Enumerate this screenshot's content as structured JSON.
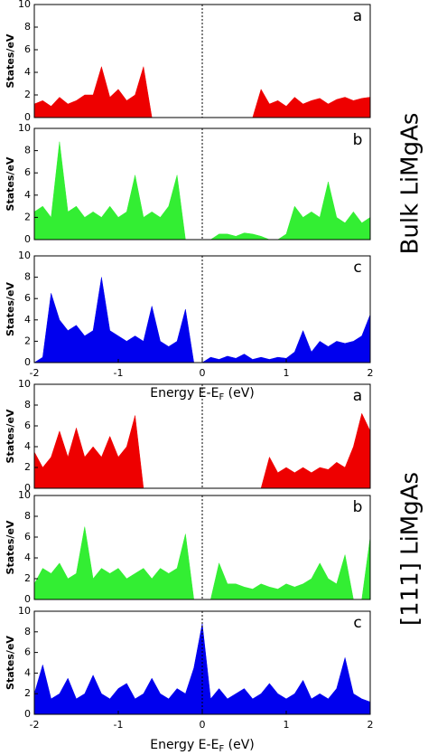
{
  "chart_data": [
    {
      "type": "area",
      "panel_label": "a",
      "ylabel": "States/eV",
      "color": "#ee0000",
      "zero_line": true,
      "xlim": [
        -2,
        2
      ],
      "ylim": [
        0,
        10
      ],
      "yticks": [
        0,
        2,
        4,
        6,
        8,
        10
      ],
      "x": [
        -2.0,
        -1.9,
        -1.8,
        -1.7,
        -1.6,
        -1.5,
        -1.4,
        -1.3,
        -1.2,
        -1.1,
        -1.0,
        -0.9,
        -0.8,
        -0.7,
        -0.6,
        -0.5,
        -0.4,
        -0.3,
        -0.2,
        -0.1,
        0,
        0.1,
        0.2,
        0.3,
        0.4,
        0.5,
        0.6,
        0.7,
        0.8,
        0.9,
        1.0,
        1.1,
        1.2,
        1.3,
        1.4,
        1.5,
        1.6,
        1.7,
        1.8,
        1.9,
        2.0
      ],
      "values": [
        1.2,
        1.5,
        1.0,
        1.8,
        1.2,
        1.5,
        2.0,
        2.0,
        4.5,
        1.8,
        2.5,
        1.5,
        2.0,
        4.5,
        0,
        0,
        0,
        0,
        0,
        0,
        0,
        0,
        0,
        0,
        0,
        0,
        0,
        2.5,
        1.2,
        1.5,
        1.0,
        1.8,
        1.2,
        1.5,
        1.7,
        1.2,
        1.6,
        1.8,
        1.5,
        1.7,
        1.8
      ]
    },
    {
      "type": "area",
      "panel_label": "b",
      "ylabel": "States/eV",
      "color": "#33ee33",
      "zero_line": true,
      "xlim": [
        -2,
        2
      ],
      "ylim": [
        0,
        10
      ],
      "yticks": [
        0,
        2,
        4,
        6,
        8,
        10
      ],
      "x": [
        -2.0,
        -1.9,
        -1.8,
        -1.7,
        -1.6,
        -1.5,
        -1.4,
        -1.3,
        -1.2,
        -1.1,
        -1.0,
        -0.9,
        -0.8,
        -0.7,
        -0.6,
        -0.5,
        -0.4,
        -0.3,
        -0.2,
        -0.1,
        0,
        0.1,
        0.2,
        0.3,
        0.4,
        0.5,
        0.6,
        0.7,
        0.8,
        0.9,
        1.0,
        1.1,
        1.2,
        1.3,
        1.4,
        1.5,
        1.6,
        1.7,
        1.8,
        1.9,
        2.0
      ],
      "values": [
        2.5,
        3,
        2,
        8.8,
        2.5,
        3,
        2,
        2.5,
        2,
        3,
        2,
        2.5,
        5.8,
        2,
        2.5,
        2,
        3,
        5.8,
        0,
        0,
        0,
        0,
        0.5,
        0.5,
        0.3,
        0.6,
        0.5,
        0.3,
        0,
        0,
        0.5,
        3,
        2,
        2.5,
        2,
        5.2,
        2,
        1.5,
        2.5,
        1.5,
        2
      ]
    },
    {
      "type": "area",
      "panel_label": "c",
      "ylabel": "States/eV",
      "color": "#0000ee",
      "zero_line": true,
      "xlim": [
        -2,
        2
      ],
      "ylim": [
        0,
        10
      ],
      "yticks": [
        0,
        2,
        4,
        6,
        8,
        10
      ],
      "xticks": [
        -2,
        -1,
        0,
        1,
        2
      ],
      "xlabel": [
        "Energy E-E",
        "F",
        " (eV)"
      ],
      "x": [
        -2.0,
        -1.9,
        -1.8,
        -1.7,
        -1.6,
        -1.5,
        -1.4,
        -1.3,
        -1.2,
        -1.1,
        -1.0,
        -0.9,
        -0.8,
        -0.7,
        -0.6,
        -0.5,
        -0.4,
        -0.3,
        -0.2,
        -0.1,
        0,
        0.1,
        0.2,
        0.3,
        0.4,
        0.5,
        0.6,
        0.7,
        0.8,
        0.9,
        1.0,
        1.1,
        1.2,
        1.3,
        1.4,
        1.5,
        1.6,
        1.7,
        1.8,
        1.9,
        2.0
      ],
      "values": [
        0,
        0.5,
        6.5,
        4,
        3,
        3.5,
        2.5,
        3,
        8,
        3,
        2.5,
        2,
        2.5,
        2,
        5.3,
        2,
        1.5,
        2,
        5,
        0,
        0,
        0.5,
        0.3,
        0.6,
        0.4,
        0.8,
        0.3,
        0.5,
        0.3,
        0.5,
        0.4,
        1,
        3,
        1,
        2,
        1.5,
        2,
        1.8,
        2,
        2.5,
        4.5
      ]
    },
    {
      "type": "area",
      "panel_label": "a",
      "ylabel": "States/eV",
      "color": "#ee0000",
      "zero_line": true,
      "xlim": [
        -2,
        2
      ],
      "ylim": [
        0,
        10
      ],
      "yticks": [
        0,
        2,
        4,
        6,
        8,
        10
      ],
      "x": [
        -2.0,
        -1.9,
        -1.8,
        -1.7,
        -1.6,
        -1.5,
        -1.4,
        -1.3,
        -1.2,
        -1.1,
        -1.0,
        -0.9,
        -0.8,
        -0.7,
        -0.6,
        -0.5,
        -0.4,
        -0.3,
        -0.2,
        -0.1,
        0,
        0.1,
        0.2,
        0.3,
        0.4,
        0.5,
        0.6,
        0.7,
        0.8,
        0.9,
        1.0,
        1.1,
        1.2,
        1.3,
        1.4,
        1.5,
        1.6,
        1.7,
        1.8,
        1.9,
        2.0
      ],
      "values": [
        3.5,
        2,
        3,
        5.5,
        3,
        5.8,
        3,
        4,
        3,
        5,
        3,
        4,
        7,
        0,
        0,
        0,
        0,
        0,
        0,
        0,
        0,
        0,
        0,
        0,
        0,
        0,
        0,
        0,
        3,
        1.5,
        2,
        1.5,
        2,
        1.5,
        2,
        1.8,
        2.5,
        2,
        4,
        7.2,
        5.5
      ]
    },
    {
      "type": "area",
      "panel_label": "b",
      "ylabel": "States/eV",
      "color": "#33ee33",
      "zero_line": true,
      "xlim": [
        -2,
        2
      ],
      "ylim": [
        0,
        10
      ],
      "yticks": [
        0,
        2,
        4,
        6,
        8,
        10
      ],
      "x": [
        -2.0,
        -1.9,
        -1.8,
        -1.7,
        -1.6,
        -1.5,
        -1.4,
        -1.3,
        -1.2,
        -1.1,
        -1.0,
        -0.9,
        -0.8,
        -0.7,
        -0.6,
        -0.5,
        -0.4,
        -0.3,
        -0.2,
        -0.1,
        0,
        0.1,
        0.2,
        0.3,
        0.4,
        0.5,
        0.6,
        0.7,
        0.8,
        0.9,
        1.0,
        1.1,
        1.2,
        1.3,
        1.4,
        1.5,
        1.6,
        1.7,
        1.8,
        1.9,
        2.0
      ],
      "values": [
        1.5,
        3,
        2.5,
        3.5,
        2,
        2.5,
        7,
        2,
        3,
        2.5,
        3,
        2,
        2.5,
        3,
        2,
        3,
        2.5,
        3,
        6.3,
        0,
        0,
        0,
        3.5,
        1.5,
        1.5,
        1.2,
        1,
        1.5,
        1.2,
        1,
        1.5,
        1.2,
        1.5,
        2,
        3.5,
        2,
        1.5,
        4.3,
        0,
        0,
        6
      ]
    },
    {
      "type": "area",
      "panel_label": "c",
      "ylabel": "States/eV",
      "color": "#0000ee",
      "zero_line": true,
      "xlim": [
        -2,
        2
      ],
      "ylim": [
        0,
        10
      ],
      "yticks": [
        0,
        2,
        4,
        6,
        8,
        10
      ],
      "xticks": [
        -2,
        -1,
        0,
        1,
        2
      ],
      "xlabel": [
        "Energy E-E",
        "F",
        " (eV)"
      ],
      "x": [
        -2.0,
        -1.9,
        -1.8,
        -1.7,
        -1.6,
        -1.5,
        -1.4,
        -1.3,
        -1.2,
        -1.1,
        -1.0,
        -0.9,
        -0.8,
        -0.7,
        -0.6,
        -0.5,
        -0.4,
        -0.3,
        -0.2,
        -0.1,
        0,
        0.1,
        0.2,
        0.3,
        0.4,
        0.5,
        0.6,
        0.7,
        0.8,
        0.9,
        1.0,
        1.1,
        1.2,
        1.3,
        1.4,
        1.5,
        1.6,
        1.7,
        1.8,
        1.9,
        2.0
      ],
      "values": [
        2,
        4.8,
        1.5,
        2,
        3.5,
        1.5,
        2,
        3.8,
        2,
        1.5,
        2.5,
        3,
        1.5,
        2,
        3.5,
        2,
        1.5,
        2.5,
        2,
        4.5,
        8.8,
        1.5,
        2.5,
        1.5,
        2,
        2.5,
        1.5,
        2,
        3,
        2,
        1.5,
        2,
        3.3,
        1.5,
        2,
        1.5,
        2.5,
        5.5,
        2,
        1.5,
        1.2
      ]
    }
  ],
  "groups": [
    {
      "label": "Bulk LiMgAs"
    },
    {
      "label": "[111] LiMgAs"
    }
  ]
}
